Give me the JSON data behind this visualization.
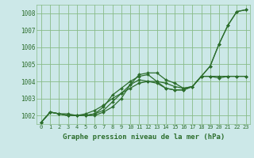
{
  "title": "Graphe pression niveau de la mer (hPa)",
  "bg_color": "#cce8e8",
  "grid_color": "#88bb88",
  "line_color": "#2d6e2d",
  "xlim": [
    -0.5,
    23.5
  ],
  "ylim": [
    1001.5,
    1008.5
  ],
  "xticks": [
    0,
    1,
    2,
    3,
    4,
    5,
    6,
    7,
    8,
    9,
    10,
    11,
    12,
    13,
    14,
    15,
    16,
    17,
    18,
    19,
    20,
    21,
    22,
    23
  ],
  "yticks": [
    1002,
    1003,
    1004,
    1005,
    1006,
    1007,
    1008
  ],
  "series": [
    [
      1001.6,
      1002.2,
      1002.1,
      1002.1,
      1002.0,
      1002.0,
      1002.0,
      1002.2,
      1002.5,
      1003.0,
      1003.8,
      1004.4,
      1004.5,
      1004.5,
      1004.1,
      1003.9,
      1003.6,
      1003.7,
      1004.3,
      1004.9,
      1006.2,
      1007.3,
      1008.1,
      1008.2
    ],
    [
      1001.6,
      1002.2,
      1002.1,
      1002.0,
      1002.0,
      1002.0,
      1002.1,
      1002.3,
      1002.8,
      1003.3,
      1003.8,
      1004.1,
      1004.0,
      1004.0,
      1003.6,
      1003.5,
      1003.5,
      1003.7,
      1004.3,
      1004.3,
      1004.3,
      1004.3,
      1004.3,
      1004.3
    ],
    [
      1001.6,
      1002.2,
      1002.1,
      1002.0,
      1002.0,
      1002.1,
      1002.3,
      1002.6,
      1003.0,
      1003.3,
      1003.6,
      1003.9,
      1004.0,
      1003.9,
      1003.6,
      1003.5,
      1003.5,
      1003.7,
      1004.3,
      1004.3,
      1004.2,
      1004.3,
      1004.3,
      1004.3
    ],
    [
      1001.6,
      1002.2,
      1002.1,
      1002.0,
      1002.0,
      1002.0,
      1002.1,
      1002.5,
      1003.2,
      1003.6,
      1004.0,
      1004.3,
      1004.4,
      1004.0,
      1003.9,
      1003.7,
      1003.6,
      1003.7,
      1004.3,
      1004.9,
      1006.2,
      1007.3,
      1008.1,
      1008.2
    ]
  ]
}
